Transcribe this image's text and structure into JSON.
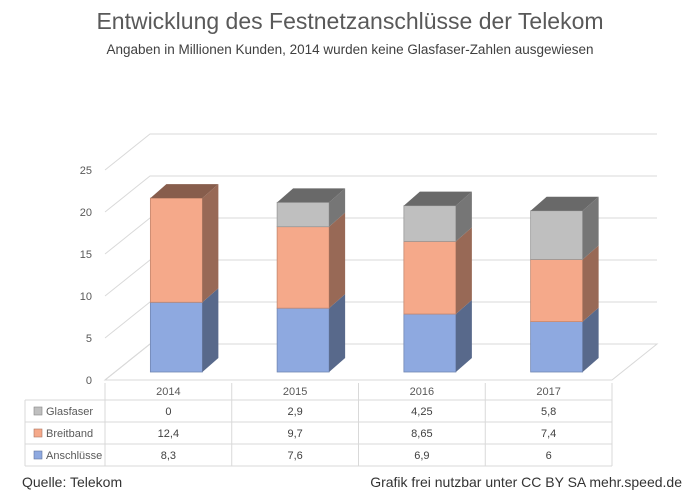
{
  "title": "Entwicklung des Festnetzanschlüsse der Telekom",
  "subtitle": "Angaben in Millionen Kunden, 2014 wurden keine Glasfaser-Zahlen ausgewiesen",
  "footer": {
    "source": "Quelle: Telekom",
    "license": "Grafik frei nutzbar unter CC BY SA mehr.speed.de"
  },
  "chart_data": {
    "type": "bar",
    "stacked": true,
    "three_d": true,
    "categories": [
      "2014",
      "2015",
      "2016",
      "2017"
    ],
    "series": [
      {
        "name": "Anschlüsse",
        "values": [
          8.3,
          7.6,
          6.9,
          6
        ],
        "labels": [
          "8,3",
          "7,6",
          "6,9",
          "6"
        ],
        "color": "#8EA9E0"
      },
      {
        "name": "Breitband",
        "values": [
          12.4,
          9.7,
          8.65,
          7.4
        ],
        "labels": [
          "12,4",
          "9,7",
          "8,65",
          "7,4"
        ],
        "color": "#F5A98A"
      },
      {
        "name": "Glasfaser",
        "values": [
          0,
          2.9,
          4.25,
          5.8
        ],
        "labels": [
          "0",
          "2,9",
          "4,25",
          "5,8"
        ],
        "color": "#BFBFBF"
      }
    ],
    "y_ticks": [
      "0",
      "5",
      "10",
      "15",
      "20",
      "25"
    ],
    "ylim": [
      0,
      25
    ],
    "grid": true,
    "legend": "data-table-below"
  }
}
